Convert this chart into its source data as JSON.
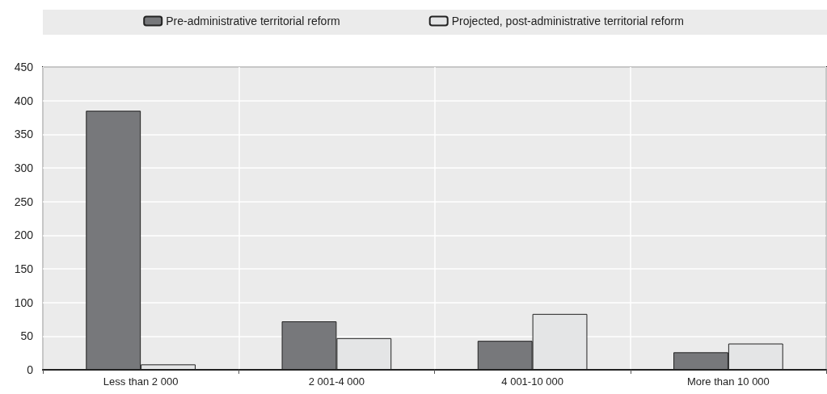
{
  "chart_data": {
    "type": "bar",
    "categories": [
      "Less than 2 000",
      "2 001-4 000",
      "4 001-10 000",
      "More than 10 000"
    ],
    "series": [
      {
        "name": "Pre-administrative territorial reform",
        "color": "#77787b",
        "values": [
          385,
          72,
          43,
          26
        ]
      },
      {
        "name": "Projected, post-administrative territorial reform",
        "color": "#e4e5e6",
        "values": [
          8,
          47,
          83,
          39
        ]
      }
    ],
    "ylim": [
      0,
      450
    ],
    "yticks": [
      0,
      50,
      100,
      150,
      200,
      250,
      300,
      350,
      400,
      450
    ],
    "grid": true,
    "legend": "top"
  }
}
